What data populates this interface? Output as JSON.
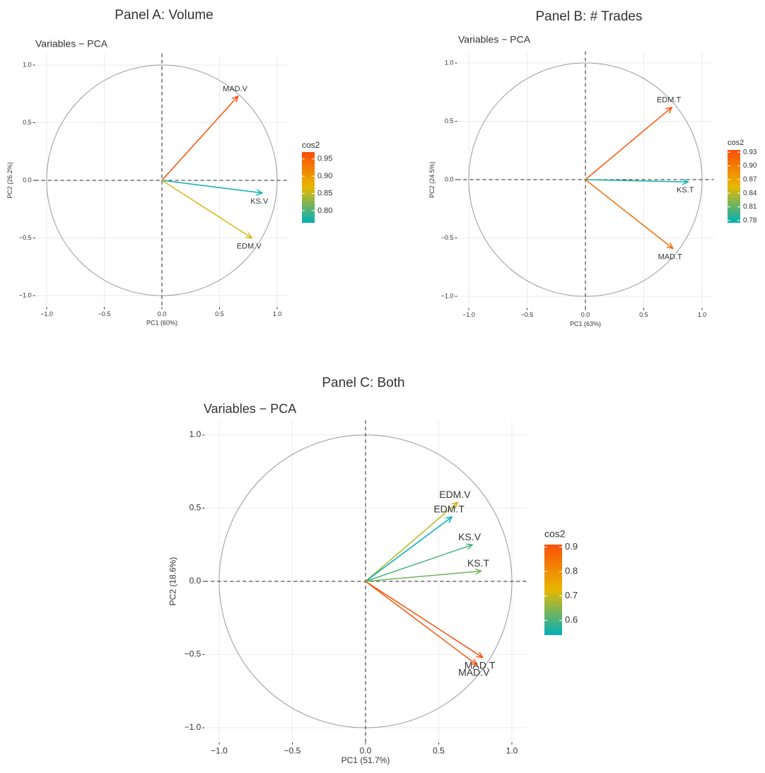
{
  "chart_data": [
    {
      "type": "pca",
      "title": "Panel A: Volume",
      "subtitle": "Variables − PCA",
      "xlabel": "PC1 (60%)",
      "ylabel": "PC2 (26.2%)",
      "xlim": [
        -1.1,
        1.1
      ],
      "ylim": [
        -1.1,
        1.1
      ],
      "xticks": [
        {
          "value": -1,
          "label": "−1.0"
        },
        {
          "value": -0.5,
          "label": "−0.5"
        },
        {
          "value": 0,
          "label": "0.0"
        },
        {
          "value": 0.5,
          "label": "0.5"
        },
        {
          "value": 1,
          "label": "1.0"
        }
      ],
      "yticks": [
        {
          "value": -1,
          "label": "−1.0"
        },
        {
          "value": -0.5,
          "label": "−0.5"
        },
        {
          "value": 0,
          "label": "0.0"
        },
        {
          "value": 0.5,
          "label": "0.5"
        },
        {
          "value": 1,
          "label": "1.0"
        }
      ],
      "grid": true,
      "variables": [
        {
          "name": "MAD.V",
          "x": 0.66,
          "y": 0.73,
          "cos2": 0.97
        },
        {
          "name": "KS.V",
          "x": 0.87,
          "y": -0.11,
          "cos2": 0.77
        },
        {
          "name": "EDM.V",
          "x": 0.78,
          "y": -0.5,
          "cos2": 0.86
        }
      ],
      "colorbar": {
        "title": "cos2",
        "lim": [
          0.765,
          0.97
        ],
        "colors": [
          "#00AFBB",
          "#E7B800",
          "#FC4E07"
        ],
        "ticks": [
          {
            "value": 0.8,
            "label": "0.80"
          },
          0.85,
          {
            "value": 0.9,
            "label": "0.90"
          },
          0.95
        ]
      }
    },
    {
      "type": "pca",
      "title": "Panel B: # Trades",
      "subtitle": "Variables − PCA",
      "xlabel": "PC1 (63%)",
      "ylabel": "PC2 (24.5%)",
      "xlim": [
        -1.1,
        1.1
      ],
      "ylim": [
        -1.1,
        1.1
      ],
      "xticks": [
        {
          "value": -1,
          "label": "−1.0"
        },
        {
          "value": -0.5,
          "label": "−0.5"
        },
        {
          "value": 0,
          "label": "0.0"
        },
        {
          "value": 0.5,
          "label": "0.5"
        },
        {
          "value": 1,
          "label": "1.0"
        }
      ],
      "yticks": [
        {
          "value": -1,
          "label": "−1.0"
        },
        {
          "value": -0.5,
          "label": "−0.5"
        },
        {
          "value": 0,
          "label": "0.0"
        },
        {
          "value": 0.5,
          "label": "0.5"
        },
        {
          "value": 1,
          "label": "1.0"
        }
      ],
      "grid": true,
      "variables": [
        {
          "name": "EDM.T",
          "x": 0.74,
          "y": 0.62,
          "cos2": 0.93
        },
        {
          "name": "KS.T",
          "x": 0.88,
          "y": -0.02,
          "cos2": 0.78
        },
        {
          "name": "MAD.T",
          "x": 0.75,
          "y": -0.59,
          "cos2": 0.91
        }
      ],
      "colorbar": {
        "title": "cos2",
        "lim": [
          0.775,
          0.935
        ],
        "colors": [
          "#00AFBB",
          "#E7B800",
          "#FC4E07"
        ],
        "ticks": [
          0.78,
          0.81,
          0.84,
          0.87,
          {
            "value": 0.9,
            "label": "0.90"
          },
          0.93
        ]
      }
    },
    {
      "type": "pca",
      "title": "Panel C: Both",
      "subtitle": "Variables − PCA",
      "xlabel": "PC1 (51.7%)",
      "ylabel": "PC2 (18.6%)",
      "xlim": [
        -1.1,
        1.1
      ],
      "ylim": [
        -1.1,
        1.1
      ],
      "xticks": [
        {
          "value": -1,
          "label": "−1.0"
        },
        {
          "value": -0.5,
          "label": "−0.5"
        },
        {
          "value": 0,
          "label": "0.0"
        },
        {
          "value": 0.5,
          "label": "0.5"
        },
        {
          "value": 1,
          "label": "1.0"
        }
      ],
      "yticks": [
        {
          "value": -1,
          "label": "−1.0"
        },
        {
          "value": -0.5,
          "label": "−0.5"
        },
        {
          "value": 0,
          "label": "0.0"
        },
        {
          "value": 0.5,
          "label": "0.5"
        },
        {
          "value": 1,
          "label": "1.0"
        }
      ],
      "grid": true,
      "variables": [
        {
          "name": "EDM.V",
          "x": 0.63,
          "y": 0.54,
          "cos2": 0.69
        },
        {
          "name": "EDM.T",
          "x": 0.59,
          "y": 0.44,
          "cos2": 0.54
        },
        {
          "name": "KS.V",
          "x": 0.73,
          "y": 0.25,
          "cos2": 0.6
        },
        {
          "name": "KS.T",
          "x": 0.79,
          "y": 0.07,
          "cos2": 0.63
        },
        {
          "name": "MAD.T",
          "x": 0.8,
          "y": -0.52,
          "cos2": 0.91
        },
        {
          "name": "MAD.V",
          "x": 0.76,
          "y": -0.57,
          "cos2": 0.9
        }
      ],
      "colorbar": {
        "title": "cos2",
        "lim": [
          0.54,
          0.91
        ],
        "colors": [
          "#00AFBB",
          "#E7B800",
          "#FC4E07"
        ],
        "ticks": [
          0.6,
          0.7,
          0.8,
          0.9
        ]
      }
    }
  ]
}
